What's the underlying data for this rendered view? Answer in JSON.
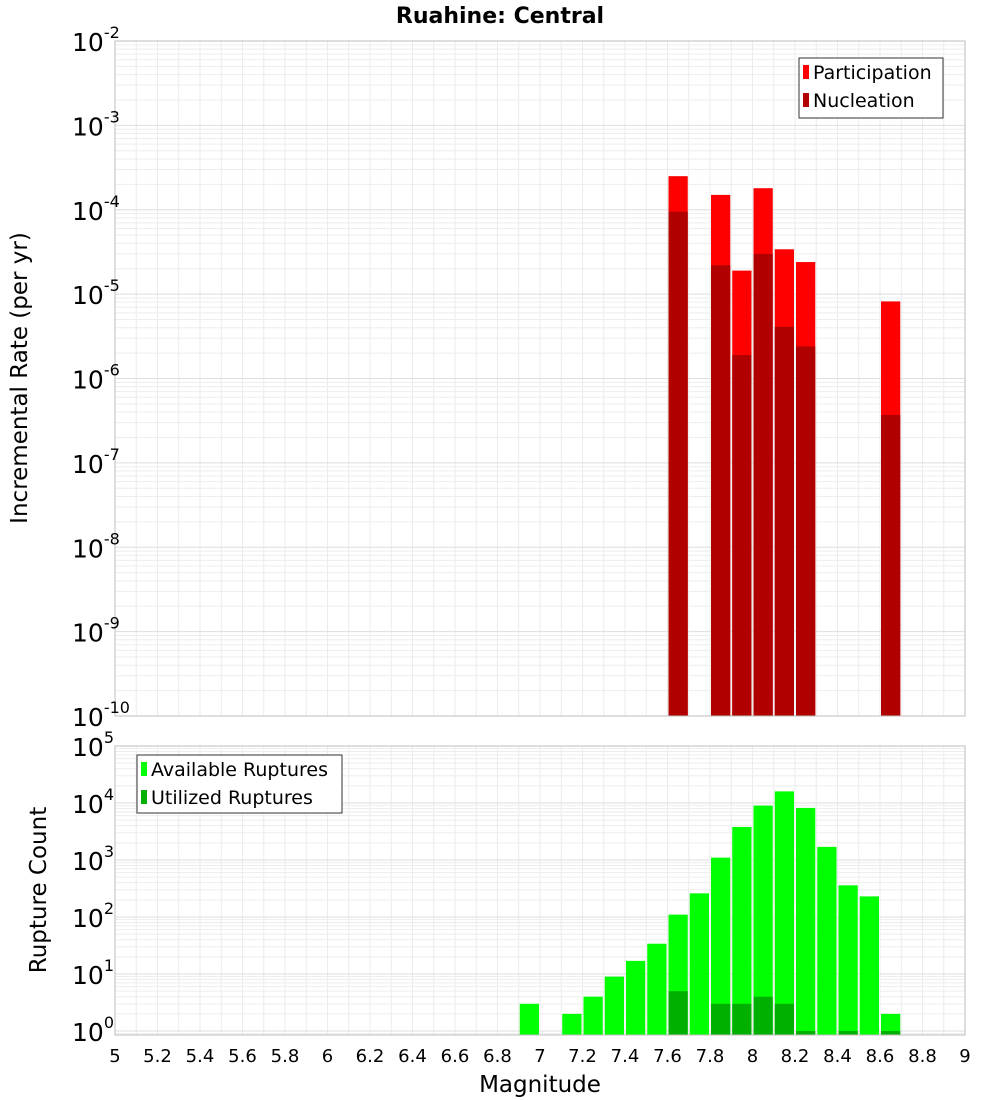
{
  "title": "Ruahine: Central",
  "chart_data": [
    {
      "type": "bar",
      "scale": "log",
      "ylabel": "Incremental Rate (per yr)",
      "xlim": [
        5,
        9
      ],
      "ylim_exp": [
        -10,
        -2
      ],
      "y_ticks": [
        {
          "base": "10",
          "exp": "-2"
        },
        {
          "base": "10",
          "exp": "-3"
        },
        {
          "base": "10",
          "exp": "-4"
        },
        {
          "base": "10",
          "exp": "-5"
        },
        {
          "base": "10",
          "exp": "-6"
        },
        {
          "base": "10",
          "exp": "-7"
        },
        {
          "base": "10",
          "exp": "-8"
        },
        {
          "base": "10",
          "exp": "-9"
        },
        {
          "base": "10",
          "exp": "-10"
        }
      ],
      "bin_width": 0.1,
      "legend": [
        "Participation",
        "Nucleation"
      ],
      "colors": {
        "Participation": "#ff0000",
        "Nucleation": "#b00000"
      },
      "series": [
        {
          "name": "Participation",
          "x": [
            7.65,
            7.85,
            7.95,
            8.05,
            8.15,
            8.25,
            8.65
          ],
          "values": [
            0.00025,
            0.00015,
            1.9e-05,
            0.00018,
            3.4e-05,
            2.4e-05,
            8.2e-06
          ]
        },
        {
          "name": "Nucleation",
          "x": [
            7.65,
            7.85,
            7.95,
            8.05,
            8.15,
            8.25,
            8.65
          ],
          "values": [
            9.5e-05,
            2.2e-05,
            1.9e-06,
            3e-05,
            4.1e-06,
            2.4e-06,
            3.7e-07
          ]
        }
      ]
    },
    {
      "type": "bar",
      "scale": "log",
      "ylabel": "Rupture Count",
      "xlabel": "Magnitude",
      "xlim": [
        5,
        9
      ],
      "ylim_exp": [
        -0.07,
        5
      ],
      "y_ticks": [
        {
          "base": "10",
          "exp": "5"
        },
        {
          "base": "10",
          "exp": "4"
        },
        {
          "base": "10",
          "exp": "3"
        },
        {
          "base": "10",
          "exp": "2"
        },
        {
          "base": "10",
          "exp": "1"
        },
        {
          "base": "10",
          "exp": "0"
        }
      ],
      "x_ticks": [
        "5",
        "5.2",
        "5.4",
        "5.6",
        "5.8",
        "6",
        "6.2",
        "6.4",
        "6.6",
        "6.8",
        "7",
        "7.2",
        "7.4",
        "7.6",
        "7.8",
        "8",
        "8.2",
        "8.4",
        "8.6",
        "8.8",
        "9"
      ],
      "bin_width": 0.1,
      "legend": [
        "Available Ruptures",
        "Utilized Ruptures"
      ],
      "colors": {
        "Available Ruptures": "#00ff00",
        "Utilized Ruptures": "#00b000"
      },
      "series": [
        {
          "name": "Available Ruptures",
          "x": [
            6.95,
            7.15,
            7.25,
            7.35,
            7.45,
            7.55,
            7.65,
            7.75,
            7.85,
            7.95,
            8.05,
            8.15,
            8.25,
            8.35,
            8.45,
            8.55,
            8.65
          ],
          "values": [
            3,
            2,
            4,
            9,
            17,
            34,
            110,
            260,
            1100,
            3800,
            9000,
            16000,
            8200,
            1700,
            360,
            230,
            2
          ]
        },
        {
          "name": "Utilized Ruptures",
          "x": [
            7.65,
            7.85,
            7.95,
            8.05,
            8.15,
            8.25,
            8.45,
            8.65
          ],
          "values": [
            5,
            3,
            3,
            4,
            3,
            1,
            1,
            1
          ]
        }
      ]
    }
  ]
}
